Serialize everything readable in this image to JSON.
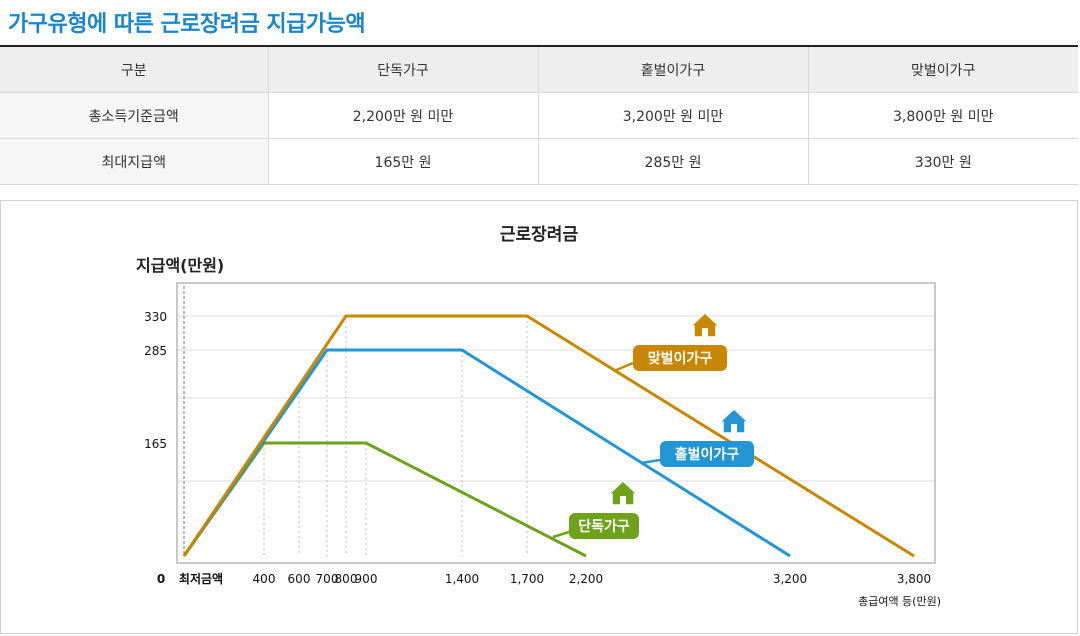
{
  "page_title": "가구유형에 따른 근로장려금 지급가능액",
  "table": {
    "headers": [
      "구분",
      "단독가구",
      "홑벌이가구",
      "맞벌이가구"
    ],
    "rows": [
      [
        "총소득기준금액",
        "2,200만 원 미만",
        "3,200만 원 미만",
        "3,800만 원 미만"
      ],
      [
        "최대지급액",
        "165만 원",
        "285만 원",
        "330만 원"
      ]
    ]
  },
  "chart_data": {
    "type": "line",
    "title": "근로장려금",
    "ylabel": "지급액(만원)",
    "xlabel": "총급여액 등(만원)",
    "origin_label": "0",
    "min_wage_label": "최저금액",
    "x_ticks": [
      400,
      600,
      700,
      800,
      900,
      1400,
      1700,
      2200,
      3200,
      3800
    ],
    "x_tick_labels": [
      "400",
      "600",
      "700",
      "800",
      "900",
      "1,400",
      "1,700",
      "2,200",
      "3,200",
      "3,800"
    ],
    "y_ticks": [
      165,
      285,
      330
    ],
    "y_tick_labels": [
      "165",
      "285",
      "330"
    ],
    "series": [
      {
        "name": "단독가구",
        "color": "#6ea21b",
        "icon": "house-icon",
        "points": [
          [
            0,
            0
          ],
          [
            400,
            165
          ],
          [
            900,
            165
          ],
          [
            2200,
            0
          ]
        ]
      },
      {
        "name": "홑벌이가구",
        "color": "#2196d3",
        "icon": "house-icon",
        "points": [
          [
            0,
            0
          ],
          [
            700,
            285
          ],
          [
            1400,
            285
          ],
          [
            3200,
            0
          ]
        ]
      },
      {
        "name": "맞벌이가구",
        "color": "#c98600",
        "icon": "house-icon",
        "points": [
          [
            0,
            0
          ],
          [
            800,
            330
          ],
          [
            1700,
            330
          ],
          [
            3800,
            0
          ]
        ]
      }
    ]
  }
}
